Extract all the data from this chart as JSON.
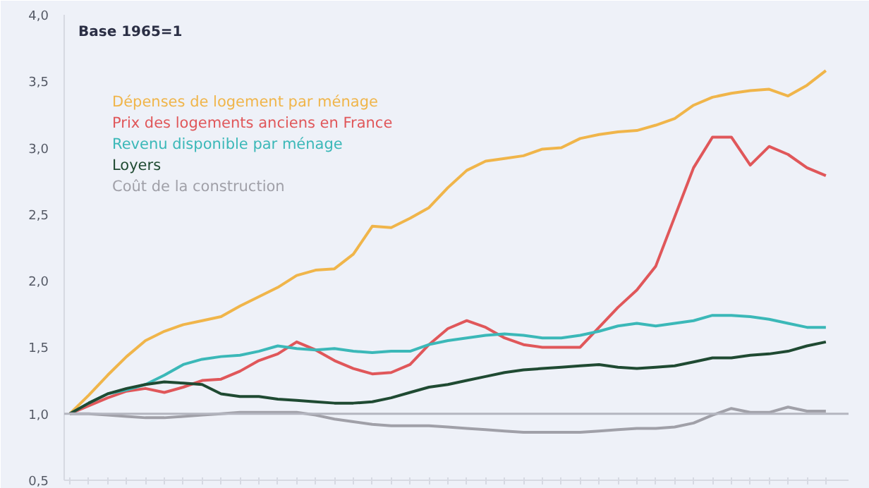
{
  "chart_data": {
    "type": "line",
    "subtitle": "Base 1965=1",
    "categories": [
      null,
      null,
      null,
      null,
      null,
      null,
      null,
      null,
      null,
      null,
      null,
      null,
      null,
      null,
      null,
      null,
      null,
      null,
      null,
      null,
      null,
      null,
      null,
      null,
      null,
      null,
      null,
      null,
      null,
      null,
      null,
      null,
      null,
      null,
      null,
      null,
      null,
      null,
      null,
      null,
      null
    ],
    "series": [
      {
        "name": "Dépenses de logement par ménage",
        "color": "#f0b54a",
        "values": [
          1.0,
          1.14,
          1.29,
          1.43,
          1.55,
          1.62,
          1.67,
          1.7,
          1.73,
          1.81,
          1.88,
          1.95,
          2.04,
          2.08,
          2.09,
          2.2,
          2.41,
          2.4,
          2.47,
          2.55,
          2.7,
          2.83,
          2.9,
          2.92,
          2.94,
          2.99,
          3.0,
          3.07,
          3.1,
          3.12,
          3.13,
          3.17,
          3.22,
          3.32,
          3.38,
          3.41,
          3.43,
          3.44,
          3.39,
          3.47,
          3.58
        ]
      },
      {
        "name": "Prix des logements anciens en France",
        "color": "#e0575a",
        "values": [
          1.0,
          1.06,
          1.12,
          1.17,
          1.19,
          1.16,
          1.2,
          1.25,
          1.26,
          1.32,
          1.4,
          1.45,
          1.54,
          1.48,
          1.4,
          1.34,
          1.3,
          1.31,
          1.37,
          1.52,
          1.64,
          1.7,
          1.65,
          1.57,
          1.52,
          1.5,
          1.5,
          1.5,
          1.65,
          1.8,
          1.93,
          2.11,
          2.48,
          2.85,
          3.08,
          3.08,
          2.87,
          3.01,
          2.95,
          2.85,
          2.79
        ]
      },
      {
        "name": "Revenu disponible par ménage",
        "color": "#3bb8b8",
        "values": [
          1.0,
          1.08,
          1.15,
          1.18,
          1.22,
          1.29,
          1.37,
          1.41,
          1.43,
          1.44,
          1.47,
          1.51,
          1.49,
          1.48,
          1.49,
          1.47,
          1.46,
          1.47,
          1.47,
          1.52,
          1.55,
          1.57,
          1.59,
          1.6,
          1.59,
          1.57,
          1.57,
          1.59,
          1.62,
          1.66,
          1.68,
          1.66,
          1.68,
          1.7,
          1.74,
          1.74,
          1.73,
          1.71,
          1.68,
          1.65,
          1.65
        ]
      },
      {
        "name": "Loyers",
        "color": "#1f4a32",
        "values": [
          1.0,
          1.08,
          1.15,
          1.19,
          1.22,
          1.24,
          1.23,
          1.22,
          1.15,
          1.13,
          1.13,
          1.11,
          1.1,
          1.09,
          1.08,
          1.08,
          1.09,
          1.12,
          1.16,
          1.2,
          1.22,
          1.25,
          1.28,
          1.31,
          1.33,
          1.34,
          1.35,
          1.36,
          1.37,
          1.35,
          1.34,
          1.35,
          1.36,
          1.39,
          1.42,
          1.42,
          1.44,
          1.45,
          1.47,
          1.51,
          1.54
        ]
      },
      {
        "name": "Coût de la construction",
        "color": "#a0a0a8",
        "values": [
          1.0,
          1.0,
          0.99,
          0.98,
          0.97,
          0.97,
          0.98,
          0.99,
          1.0,
          1.01,
          1.01,
          1.01,
          1.01,
          0.99,
          0.96,
          0.94,
          0.92,
          0.91,
          0.91,
          0.91,
          0.9,
          0.89,
          0.88,
          0.87,
          0.86,
          0.86,
          0.86,
          0.86,
          0.87,
          0.88,
          0.89,
          0.89,
          0.9,
          0.93,
          0.99,
          1.04,
          1.01,
          1.01,
          1.05,
          1.02,
          1.02
        ]
      }
    ],
    "ylim": [
      0.5,
      4.0
    ],
    "yticks": [
      {
        "value": 0.5,
        "label": "0,5"
      },
      {
        "value": 1.0,
        "label": "1,0"
      },
      {
        "value": 1.5,
        "label": "1,5"
      },
      {
        "value": 2.0,
        "label": "2,0"
      },
      {
        "value": 2.5,
        "label": "2,5"
      },
      {
        "value": 3.0,
        "label": "3,0"
      },
      {
        "value": 3.5,
        "label": "3,5"
      },
      {
        "value": 4.0,
        "label": "4,0"
      }
    ],
    "ref_lines": [
      {
        "axis": "y",
        "value": 1.0,
        "label": null,
        "color": "#b4b6c0"
      }
    ],
    "tick_labels": "y",
    "legend": "top left",
    "grid": false,
    "marker": "none",
    "line_style": "solid"
  }
}
